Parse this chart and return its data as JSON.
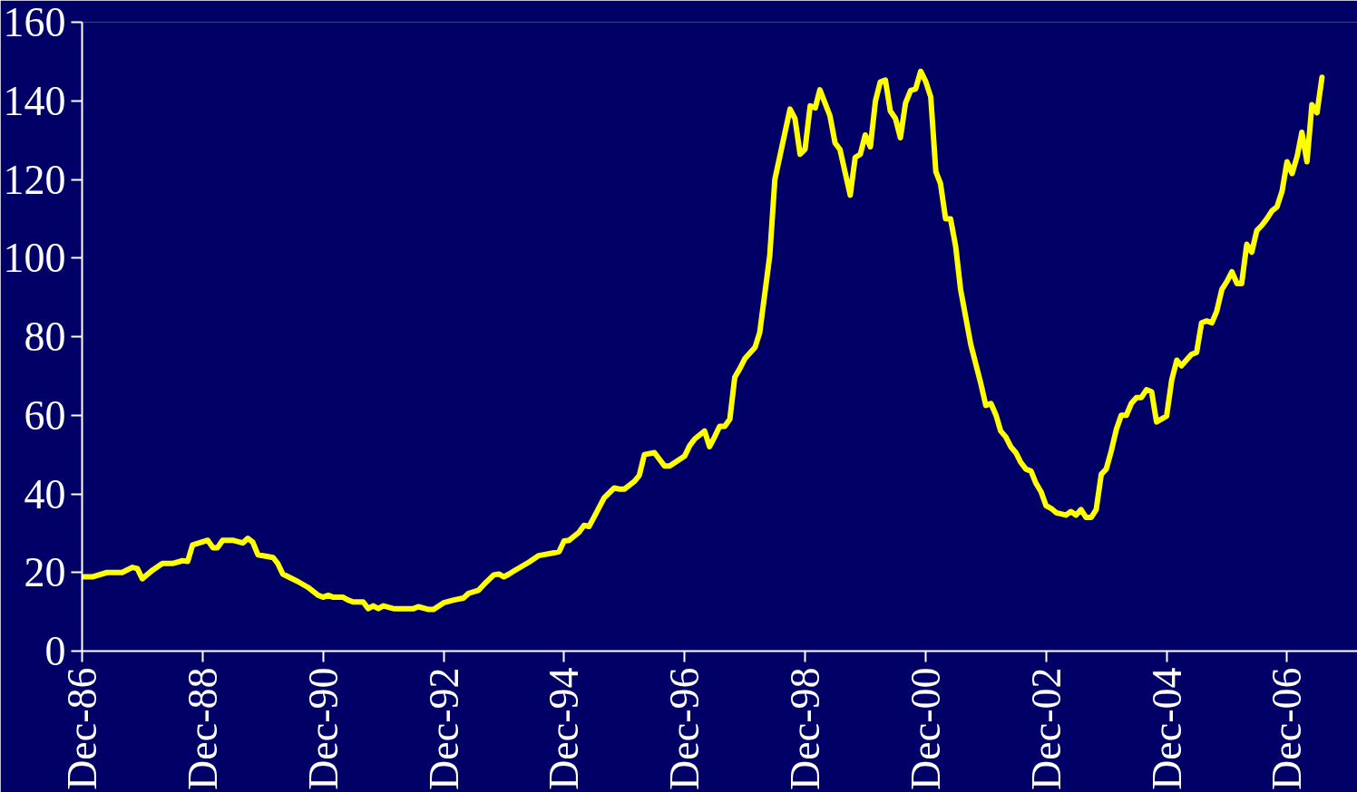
{
  "chart_data": {
    "type": "line",
    "x": [
      "1986-12",
      "1987-02",
      "1987-05",
      "1987-08",
      "1987-10",
      "1987-11",
      "1987-12",
      "1988-02",
      "1988-04",
      "1988-06",
      "1988-08",
      "1988-09",
      "1988-10",
      "1989-01",
      "1989-02",
      "1989-03",
      "1989-04",
      "1989-06",
      "1989-08",
      "1989-09",
      "1989-10",
      "1989-11",
      "1990-02",
      "1990-03",
      "1990-04",
      "1990-07",
      "1990-09",
      "1990-11",
      "1990-12",
      "1991-01",
      "1991-02",
      "1991-04",
      "1991-05",
      "1991-06",
      "1991-08",
      "1991-09",
      "1991-10",
      "1991-11",
      "1991-12",
      "1992-02",
      "1992-06",
      "1992-07",
      "1992-09",
      "1992-10",
      "1992-12",
      "1993-02",
      "1993-04",
      "1993-05",
      "1993-07",
      "1993-08",
      "1993-10",
      "1993-11",
      "1993-12",
      "1994-01",
      "1994-02",
      "1994-05",
      "1994-07",
      "1994-10",
      "1994-11",
      "1994-12",
      "1995-01",
      "1995-03",
      "1995-04",
      "1995-05",
      "1995-06",
      "1995-08",
      "1995-10",
      "1995-11",
      "1995-12",
      "1996-02",
      "1996-03",
      "1996-04",
      "1996-06",
      "1996-08",
      "1996-09",
      "1996-12",
      "1997-01",
      "1997-02",
      "1997-04",
      "1997-05",
      "1997-06",
      "1997-07",
      "1997-08",
      "1997-09",
      "1997-10",
      "1997-11",
      "1997-12",
      "1998-02",
      "1998-03",
      "1998-05",
      "1998-06",
      "1998-09",
      "1998-10",
      "1998-11",
      "1998-12",
      "1999-01",
      "1999-02",
      "1999-03",
      "1999-05",
      "1999-06",
      "1999-07",
      "1999-09",
      "1999-10",
      "1999-11",
      "1999-12",
      "2000-01",
      "2000-02",
      "2000-03",
      "2000-04",
      "2000-05",
      "2000-06",
      "2000-07",
      "2000-08",
      "2000-09",
      "2000-10",
      "2000-11",
      "2000-12",
      "2001-01",
      "2001-02",
      "2001-03",
      "2001-04",
      "2001-05",
      "2001-06",
      "2001-07",
      "2001-09",
      "2001-11",
      "2001-12",
      "2002-01",
      "2002-02",
      "2002-03",
      "2002-04",
      "2002-05",
      "2002-06",
      "2002-07",
      "2002-08",
      "2002-09",
      "2002-10",
      "2002-11",
      "2002-12",
      "2003-01",
      "2003-02",
      "2003-04",
      "2003-05",
      "2003-06",
      "2003-07",
      "2003-08",
      "2003-09",
      "2003-10",
      "2003-11",
      "2003-12",
      "2004-01",
      "2004-02",
      "2004-03",
      "2004-04",
      "2004-05",
      "2004-06",
      "2004-07",
      "2004-08",
      "2004-09",
      "2004-10",
      "2004-12",
      "2005-01",
      "2005-02",
      "2005-03",
      "2005-05",
      "2005-06",
      "2005-07",
      "2005-08",
      "2005-09",
      "2005-10",
      "2005-11",
      "2005-12",
      "2006-01",
      "2006-02",
      "2006-03",
      "2006-04",
      "2006-05",
      "2006-06",
      "2006-07",
      "2006-08",
      "2006-09",
      "2006-10",
      "2006-11",
      "2006-12",
      "2007-01",
      "2007-02",
      "2007-03",
      "2007-04",
      "2007-05",
      "2007-06",
      "2007-07"
    ],
    "series": [
      {
        "color": "#ffff00",
        "values": [
          18.9,
          18.9,
          20,
          20,
          21.3,
          21,
          18.4,
          20.6,
          22.3,
          22.3,
          23,
          22.8,
          27,
          28.2,
          26.3,
          26.3,
          28.2,
          28.2,
          27.5,
          28.7,
          27.7,
          24.5,
          23.8,
          22.3,
          19.6,
          17.7,
          16.2,
          14.2,
          13.7,
          14.2,
          13.7,
          13.7,
          13,
          12.5,
          12.5,
          10.8,
          11.5,
          10.8,
          11.5,
          10.8,
          10.8,
          11.3,
          10.6,
          10.6,
          12.3,
          13,
          13.5,
          14.7,
          15.5,
          16.9,
          19.4,
          19.6,
          18.9,
          19.6,
          20.4,
          22.6,
          24.3,
          25,
          25.3,
          28,
          28.2,
          30.2,
          32,
          31.7,
          34.1,
          39,
          41.5,
          41.2,
          41.2,
          43.2,
          44.7,
          50,
          50.5,
          47.1,
          47.1,
          49.6,
          52.3,
          54,
          56,
          52,
          54.5,
          57.2,
          57.2,
          59,
          69.7,
          71.9,
          74.4,
          77.3,
          81,
          100.6,
          120,
          137.9,
          135.5,
          126.4,
          127.7,
          138.7,
          138.2,
          142.8,
          136.2,
          129.3,
          127.6,
          116,
          125.6,
          126.4,
          131.3,
          128.3,
          140,
          144.8,
          145.3,
          137.4,
          135.5,
          130.6,
          139.4,
          142.6,
          143,
          147.5,
          145,
          141,
          122,
          119,
          110,
          110,
          103,
          92,
          78,
          68,
          62.5,
          63,
          60,
          56,
          54.5,
          52,
          50.5,
          48,
          46.3,
          45.8,
          42.7,
          40.5,
          37,
          36.3,
          35.2,
          34.6,
          35.5,
          34.6,
          36,
          34,
          34,
          36,
          45,
          46.3,
          51,
          56.5,
          60,
          60,
          63,
          64.5,
          64.5,
          66.5,
          66,
          58.3,
          59.8,
          69,
          74,
          72.6,
          75.5,
          76,
          83.5,
          84,
          83.5,
          86.5,
          92,
          94,
          96.5,
          93.5,
          93.5,
          103.5,
          101.5,
          107,
          108.3,
          110,
          112,
          113,
          117,
          124.5,
          121.5,
          126,
          132,
          124.5,
          139,
          137,
          146
        ]
      }
    ],
    "xlim": [
      "1986-12",
      "2008-02"
    ],
    "xticks": [
      {
        "value": "1986-12",
        "label": "Dec-86"
      },
      {
        "value": "1988-12",
        "label": "Dec-88"
      },
      {
        "value": "1990-12",
        "label": "Dec-90"
      },
      {
        "value": "1992-12",
        "label": "Dec-92"
      },
      {
        "value": "1994-12",
        "label": "Dec-94"
      },
      {
        "value": "1996-12",
        "label": "Dec-96"
      },
      {
        "value": "1998-12",
        "label": "Dec-98"
      },
      {
        "value": "2000-12",
        "label": "Dec-00"
      },
      {
        "value": "2002-12",
        "label": "Dec-02"
      },
      {
        "value": "2004-12",
        "label": "Dec-04"
      },
      {
        "value": "2006-12",
        "label": "Dec-06"
      }
    ],
    "ylim": [
      0,
      160
    ],
    "yticks": [
      0,
      20,
      40,
      60,
      80,
      100,
      120,
      140,
      160
    ],
    "grid": false,
    "marker": "none",
    "line_style": "solid"
  }
}
